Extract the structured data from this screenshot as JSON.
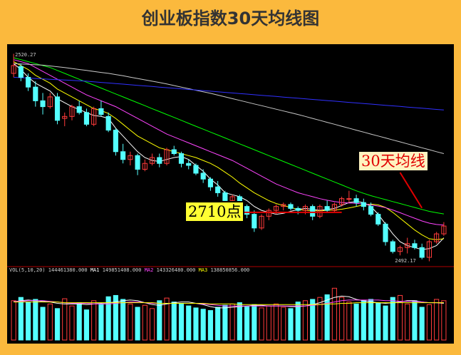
{
  "title": "创业板指数30天均线图",
  "annotations": {
    "ma30_label": "30天均线",
    "level_label": "2710点"
  },
  "readouts": {
    "high_marker": "2520.27",
    "low_marker": "2492.17",
    "volume_legend": {
      "vol": "VOL(5,10,20)",
      "vol_value": "144461380.000",
      "ma1": "MA1",
      "ma1_value": "149851408.000",
      "ma2": "MA2",
      "ma2_value": "143326480.000",
      "ma3": "MA3",
      "ma3_value": "138850856.000"
    }
  },
  "colors": {
    "background": "#fbb93d",
    "panel": "#000000",
    "up": "#ff3b3b",
    "down": "#54ffff",
    "ma5": "#ffffff",
    "ma10": "#ffff00",
    "ma20": "#ff44ff",
    "ma30": "#00ff00",
    "ma60": "#c8c8c8",
    "ma120": "#3030ff",
    "level_line": "#e00000"
  },
  "chart_data": {
    "type": "candlestick",
    "title": "创业板指数30天均线图",
    "x": [
      1,
      2,
      3,
      4,
      5,
      6,
      7,
      8,
      9,
      10,
      11,
      12,
      13,
      14,
      15,
      16,
      17,
      18,
      19,
      20,
      21,
      22,
      23,
      24,
      25,
      26,
      27,
      28,
      29,
      30,
      31,
      32,
      33,
      34,
      35,
      36,
      37,
      38,
      39,
      40,
      41,
      42,
      43,
      44,
      45,
      46,
      47,
      48,
      49,
      50,
      51,
      52,
      53,
      54,
      55,
      56,
      57,
      58,
      59,
      60
    ],
    "ohlc": [
      [
        3420,
        3520,
        3400,
        3460
      ],
      [
        3455,
        3470,
        3380,
        3400
      ],
      [
        3400,
        3420,
        3330,
        3350
      ],
      [
        3350,
        3380,
        3250,
        3280
      ],
      [
        3280,
        3320,
        3210,
        3250
      ],
      [
        3250,
        3320,
        3240,
        3300
      ],
      [
        3300,
        3320,
        3160,
        3180
      ],
      [
        3190,
        3220,
        3150,
        3200
      ],
      [
        3200,
        3260,
        3180,
        3250
      ],
      [
        3250,
        3280,
        3210,
        3220
      ],
      [
        3220,
        3240,
        3150,
        3160
      ],
      [
        3160,
        3250,
        3150,
        3240
      ],
      [
        3240,
        3280,
        3200,
        3210
      ],
      [
        3200,
        3220,
        3120,
        3130
      ],
      [
        3130,
        3140,
        3000,
        3020
      ],
      [
        3020,
        3060,
        2960,
        2980
      ],
      [
        2980,
        3020,
        2950,
        3000
      ],
      [
        3000,
        3010,
        2900,
        2930
      ],
      [
        2930,
        2980,
        2920,
        2960
      ],
      [
        2960,
        3010,
        2950,
        2990
      ],
      [
        2990,
        3010,
        2940,
        2960
      ],
      [
        2960,
        3040,
        2950,
        3030
      ],
      [
        3030,
        3050,
        3000,
        3010
      ],
      [
        3010,
        3020,
        2940,
        2960
      ],
      [
        2960,
        2980,
        2930,
        2950
      ],
      [
        2950,
        2960,
        2900,
        2910
      ],
      [
        2910,
        2930,
        2860,
        2880
      ],
      [
        2880,
        2890,
        2820,
        2840
      ],
      [
        2840,
        2870,
        2790,
        2810
      ],
      [
        2810,
        2820,
        2750,
        2770
      ],
      [
        2770,
        2800,
        2740,
        2790
      ],
      [
        2790,
        2800,
        2720,
        2740
      ],
      [
        2740,
        2750,
        2680,
        2700
      ],
      [
        2700,
        2720,
        2610,
        2630
      ],
      [
        2630,
        2700,
        2620,
        2690
      ],
      [
        2690,
        2730,
        2670,
        2720
      ],
      [
        2720,
        2750,
        2700,
        2740
      ],
      [
        2740,
        2760,
        2720,
        2750
      ],
      [
        2750,
        2760,
        2720,
        2730
      ],
      [
        2730,
        2740,
        2700,
        2720
      ],
      [
        2720,
        2750,
        2700,
        2740
      ],
      [
        2740,
        2750,
        2670,
        2690
      ],
      [
        2690,
        2750,
        2680,
        2740
      ],
      [
        2740,
        2770,
        2710,
        2720
      ],
      [
        2720,
        2760,
        2710,
        2750
      ],
      [
        2750,
        2790,
        2740,
        2780
      ],
      [
        2780,
        2820,
        2760,
        2780
      ],
      [
        2780,
        2800,
        2740,
        2760
      ],
      [
        2760,
        2780,
        2720,
        2740
      ],
      [
        2740,
        2760,
        2690,
        2700
      ],
      [
        2700,
        2710,
        2640,
        2650
      ],
      [
        2650,
        2660,
        2540,
        2560
      ],
      [
        2560,
        2570,
        2500,
        2510
      ],
      [
        2510,
        2540,
        2490,
        2530
      ],
      [
        2530,
        2580,
        2500,
        2550
      ],
      [
        2550,
        2570,
        2520,
        2530
      ],
      [
        2530,
        2550,
        2470,
        2480
      ],
      [
        2480,
        2570,
        2460,
        2560
      ],
      [
        2560,
        2610,
        2550,
        2600
      ],
      [
        2600,
        2660,
        2590,
        2640
      ]
    ],
    "series": [
      {
        "values": [
          3470,
          3440,
          3400,
          3370,
          3350,
          3330,
          3290,
          3270,
          3250,
          3235,
          3220,
          3205,
          3200,
          3190,
          3140,
          3100,
          3060,
          3020,
          2990,
          2975,
          2970,
          2980,
          2990,
          2995,
          2980,
          2950,
          2920,
          2880,
          2850,
          2810,
          2800,
          2790,
          2770,
          2740,
          2720,
          2710,
          2700,
          2705,
          2715,
          2725,
          2730,
          2725,
          2720,
          2725,
          2730,
          2745,
          2760,
          2765,
          2760,
          2740,
          2700,
          2650,
          2600,
          2560,
          2540,
          2530,
          2520,
          2525,
          2540,
          2580
        ]
      },
      {
        "values": [
          3480,
          3460,
          3440,
          3410,
          3390,
          3370,
          3340,
          3320,
          3300,
          3280,
          3260,
          3240,
          3230,
          3215,
          3190,
          3160,
          3130,
          3100,
          3080,
          3060,
          3040,
          3030,
          3020,
          3010,
          3000,
          2990,
          2975,
          2960,
          2940,
          2915,
          2890,
          2860,
          2835,
          2810,
          2790,
          2770,
          2755,
          2745,
          2735,
          2725,
          2720,
          2718,
          2718,
          2720,
          2722,
          2726,
          2732,
          2740,
          2748,
          2752,
          2748,
          2735,
          2710,
          2680,
          2650,
          2620,
          2595,
          2575,
          2570,
          2575
        ]
      },
      {
        "values": [
          3490,
          3480,
          3470,
          3450,
          3430,
          3410,
          3390,
          3370,
          3350,
          3330,
          3310,
          3295,
          3280,
          3265,
          3250,
          3230,
          3210,
          3190,
          3170,
          3150,
          3130,
          3110,
          3095,
          3080,
          3065,
          3050,
          3035,
          3020,
          3005,
          2990,
          2975,
          2955,
          2935,
          2915,
          2895,
          2875,
          2855,
          2840,
          2825,
          2810,
          2800,
          2790,
          2780,
          2772,
          2765,
          2760,
          2758,
          2756,
          2752,
          2748,
          2742,
          2734,
          2722,
          2708,
          2694,
          2680,
          2666,
          2655,
          2648,
          2645
        ]
      },
      {
        "values": [
          3500,
          3490,
          3480,
          3470,
          3460,
          3450,
          3435,
          3420,
          3405,
          3390,
          3375,
          3360,
          3345,
          3330,
          3315,
          3300,
          3285,
          3270,
          3255,
          3240,
          3225,
          3210,
          3195,
          3180,
          3165,
          3150,
          3135,
          3120,
          3105,
          3090,
          3075,
          3060,
          3045,
          3030,
          3015,
          3000,
          2985,
          2970,
          2955,
          2940,
          2925,
          2910,
          2895,
          2880,
          2865,
          2850,
          2835,
          2820,
          2807,
          2795,
          2785,
          2775,
          2765,
          2755,
          2745,
          2735,
          2725,
          2715,
          2708,
          2702
        ]
      },
      {
        "values": [
          3470,
          3468,
          3466,
          3464,
          3462,
          3458,
          3454,
          3450,
          3445,
          3440,
          3435,
          3430,
          3425,
          3420,
          3414,
          3408,
          3401,
          3394,
          3387,
          3380,
          3373,
          3366,
          3358,
          3350,
          3342,
          3334,
          3326,
          3318,
          3309,
          3300,
          3291,
          3282,
          3273,
          3264,
          3255,
          3246,
          3237,
          3228,
          3219,
          3210,
          3200,
          3190,
          3180,
          3170,
          3160,
          3150,
          3140,
          3130,
          3120,
          3110,
          3100,
          3090,
          3080,
          3070,
          3060,
          3050,
          3040,
          3030,
          3020,
          3010
        ]
      },
      {
        "values": [
          3400,
          3398,
          3396,
          3394,
          3392,
          3390,
          3388,
          3386,
          3384,
          3382,
          3380,
          3377,
          3374,
          3371,
          3368,
          3365,
          3362,
          3359,
          3356,
          3353,
          3350,
          3347,
          3344,
          3341,
          3338,
          3335,
          3332,
          3329,
          3326,
          3323,
          3320,
          3317,
          3314,
          3311,
          3308,
          3305,
          3302,
          3299,
          3296,
          3293,
          3290,
          3287,
          3284,
          3281,
          3278,
          3275,
          3272,
          3269,
          3266,
          3263,
          3260,
          3257,
          3254,
          3251,
          3248,
          3245,
          3242,
          3239,
          3236,
          3233
        ]
      }
    ],
    "volume": [
      60,
      65,
      58,
      62,
      50,
      55,
      48,
      63,
      52,
      57,
      46,
      60,
      54,
      66,
      68,
      62,
      55,
      50,
      53,
      48,
      60,
      64,
      58,
      56,
      52,
      49,
      47,
      45,
      50,
      53,
      55,
      57,
      51,
      54,
      49,
      52,
      55,
      50,
      48,
      58,
      60,
      62,
      65,
      69,
      79,
      65,
      58,
      55,
      60,
      62,
      56,
      52,
      65,
      68,
      55,
      60,
      50,
      54,
      62,
      60
    ],
    "volume_ma": [
      {
        "values": [
          58,
          60,
          61,
          60,
          59,
          58,
          56,
          55,
          55,
          55,
          54,
          55,
          56,
          57,
          58,
          60,
          61,
          60,
          57,
          54,
          53,
          55,
          57,
          58,
          58,
          56,
          54,
          51,
          49,
          49,
          50,
          51,
          52,
          53,
          53,
          52,
          52,
          52,
          51,
          51,
          52,
          54,
          57,
          61,
          65,
          67,
          66,
          62,
          60,
          58,
          57,
          56,
          57,
          58,
          60,
          60,
          58,
          57,
          57,
          56
        ]
      },
      {
        "values": [
          59,
          59,
          60,
          60,
          60,
          59,
          58,
          57,
          56,
          56,
          56,
          55,
          55,
          55,
          56,
          57,
          58,
          58,
          57,
          56,
          56,
          56,
          56,
          56,
          56,
          56,
          55,
          54,
          53,
          52,
          52,
          52,
          52,
          52,
          52,
          52,
          52,
          52,
          52,
          52,
          52,
          53,
          54,
          56,
          58,
          60,
          61,
          61,
          61,
          61,
          61,
          60,
          60,
          59,
          59,
          59,
          58,
          57,
          57,
          57
        ]
      },
      {
        "values": [
          58,
          58,
          58,
          58,
          58,
          58,
          58,
          57,
          57,
          57,
          57,
          57,
          57,
          57,
          57,
          57,
          57,
          57,
          57,
          57,
          56,
          56,
          56,
          56,
          56,
          56,
          56,
          55,
          55,
          55,
          55,
          54,
          54,
          54,
          54,
          54,
          54,
          54,
          54,
          54,
          54,
          54,
          54,
          55,
          55,
          56,
          56,
          57,
          57,
          57,
          57,
          57,
          57,
          57,
          57,
          57,
          57,
          57,
          57,
          57
        ]
      }
    ],
    "reference_level": 2710,
    "ylim": [
      2440,
      3540
    ]
  }
}
